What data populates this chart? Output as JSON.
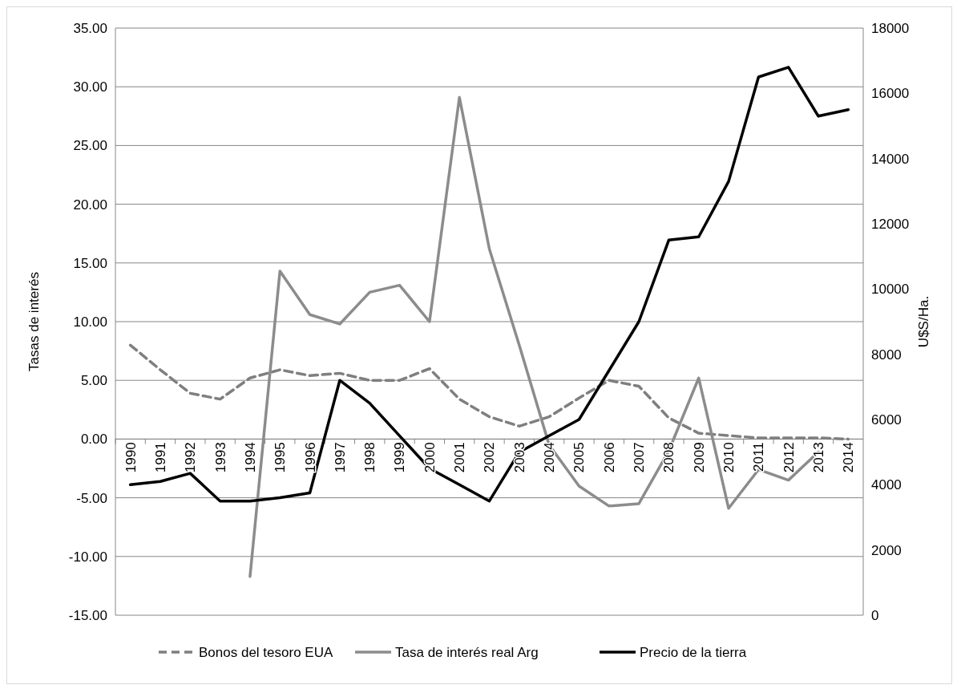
{
  "chart_data": {
    "type": "line",
    "ylabel": "Tasas de interés",
    "y2label": "U$S/Ha.",
    "categories": [
      "1990",
      "1991",
      "1992",
      "1993",
      "1994",
      "1995",
      "1996",
      "1997",
      "1998",
      "1999",
      "2000",
      "2001",
      "2002",
      "2003",
      "2004",
      "2005",
      "2006",
      "2007",
      "2008",
      "2009",
      "2010",
      "2011",
      "2012",
      "2013",
      "2014"
    ],
    "series": [
      {
        "name": "Bonos del tesoro EUA",
        "color": "#7f7f7f",
        "line_style": "dashed",
        "values": [
          8.0,
          5.9,
          3.9,
          3.4,
          5.2,
          5.9,
          5.4,
          5.6,
          5.0,
          5.0,
          6.0,
          3.4,
          1.9,
          1.1,
          1.9,
          3.5,
          5.0,
          4.5,
          1.8,
          0.5,
          0.3,
          0.1,
          0.1,
          0.1,
          0.0
        ]
      },
      {
        "name": "Tasa de interés real Arg",
        "color": "#8c8c8c",
        "line_style": "solid",
        "values": [
          null,
          null,
          null,
          null,
          -11.7,
          14.3,
          10.6,
          9.8,
          12.5,
          13.1,
          10.0,
          29.1,
          16.2,
          8.0,
          -0.5,
          -4.0,
          -5.7,
          -5.5,
          -1.0,
          5.2,
          -5.9,
          -2.6,
          -3.5,
          -1.1,
          null
        ]
      },
      {
        "name": "Precio de la tierra",
        "color": "#000000",
        "line_style": "solid",
        "axis": "y2",
        "values": [
          4000,
          4100,
          4350,
          3500,
          3500,
          3600,
          3750,
          7200,
          6500,
          5500,
          4500,
          4000,
          3500,
          5000,
          5500,
          6000,
          7500,
          9000,
          11500,
          11600,
          13300,
          16500,
          16800,
          15300,
          15500
        ]
      }
    ],
    "ylim": [
      -15,
      35
    ],
    "yticks": [
      {
        "value": -15,
        "label": "-15.00"
      },
      {
        "value": -10,
        "label": "-10.00"
      },
      {
        "value": -5,
        "label": "-5.00"
      },
      {
        "value": 0,
        "label": "0.00"
      },
      {
        "value": 5,
        "label": "5.00"
      },
      {
        "value": 10,
        "label": "10.00"
      },
      {
        "value": 15,
        "label": "15.00"
      },
      {
        "value": 20,
        "label": "20.00"
      },
      {
        "value": 25,
        "label": "25.00"
      },
      {
        "value": 30,
        "label": "30.00"
      },
      {
        "value": 35,
        "label": "35.00"
      }
    ],
    "y2lim": [
      0,
      18000
    ],
    "y2ticks": [
      0,
      2000,
      4000,
      6000,
      8000,
      10000,
      12000,
      14000,
      16000,
      18000
    ],
    "grid": "y",
    "legend": "bottom"
  }
}
